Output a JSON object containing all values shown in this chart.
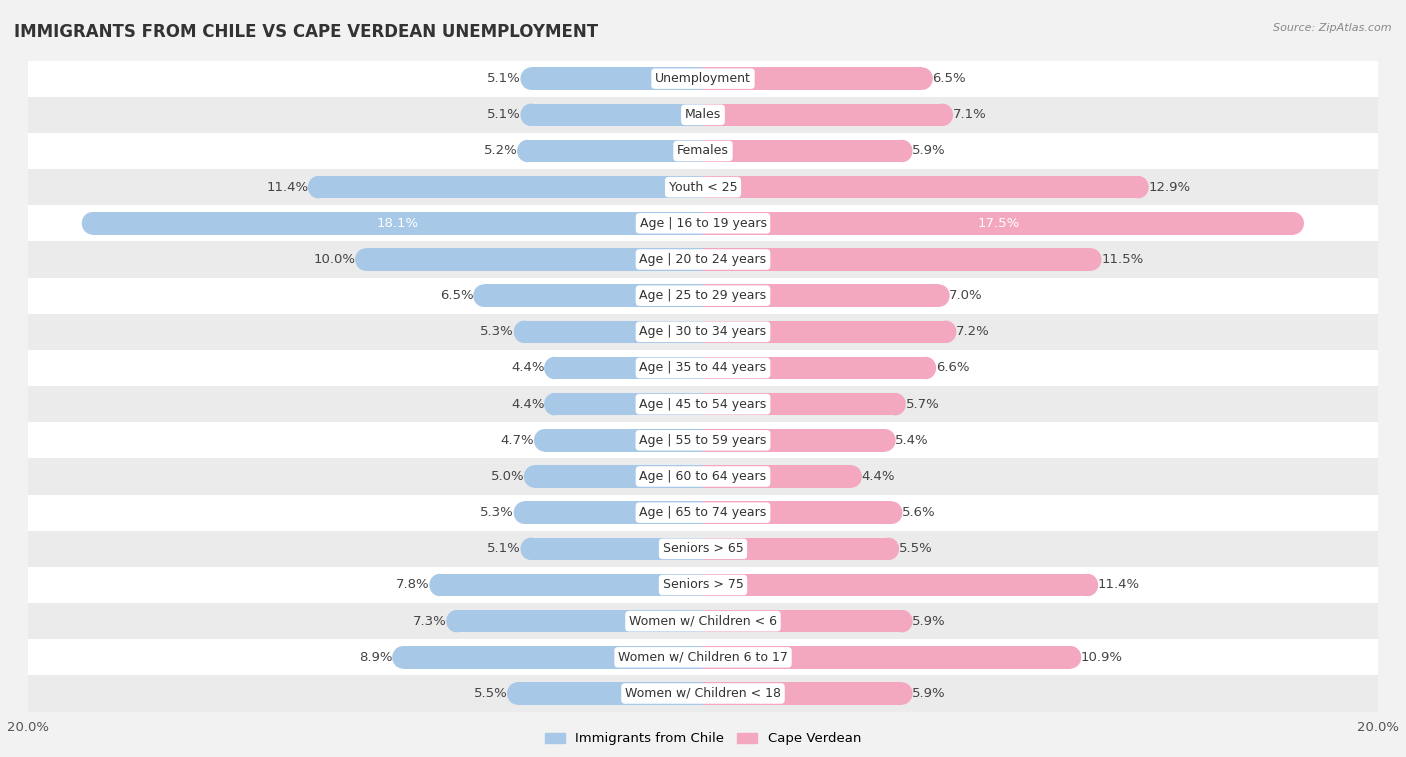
{
  "title": "IMMIGRANTS FROM CHILE VS CAPE VERDEAN UNEMPLOYMENT",
  "source": "Source: ZipAtlas.com",
  "categories": [
    "Unemployment",
    "Males",
    "Females",
    "Youth < 25",
    "Age | 16 to 19 years",
    "Age | 20 to 24 years",
    "Age | 25 to 29 years",
    "Age | 30 to 34 years",
    "Age | 35 to 44 years",
    "Age | 45 to 54 years",
    "Age | 55 to 59 years",
    "Age | 60 to 64 years",
    "Age | 65 to 74 years",
    "Seniors > 65",
    "Seniors > 75",
    "Women w/ Children < 6",
    "Women w/ Children 6 to 17",
    "Women w/ Children < 18"
  ],
  "chile_values": [
    5.1,
    5.1,
    5.2,
    11.4,
    18.1,
    10.0,
    6.5,
    5.3,
    4.4,
    4.4,
    4.7,
    5.0,
    5.3,
    5.1,
    7.8,
    7.3,
    8.9,
    5.5
  ],
  "capeverdean_values": [
    6.5,
    7.1,
    5.9,
    12.9,
    17.5,
    11.5,
    7.0,
    7.2,
    6.6,
    5.7,
    5.4,
    4.4,
    5.6,
    5.5,
    11.4,
    5.9,
    10.9,
    5.9
  ],
  "chile_color": "#a8c8e8",
  "capeverdean_color": "#f4a8bf",
  "chile_label": "Immigrants from Chile",
  "capeverdean_label": "Cape Verdean",
  "axis_max": 20.0,
  "background_color": "#f2f2f2",
  "row_colors_odd": "#ffffff",
  "row_colors_even": "#ebebeb",
  "value_label_fontsize": 9.5,
  "category_label_fontsize": 9,
  "title_fontsize": 12,
  "bar_height": 0.62
}
